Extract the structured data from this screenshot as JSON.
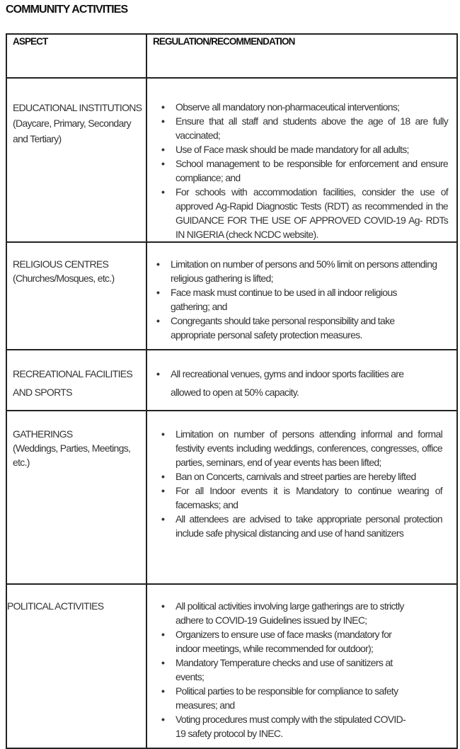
{
  "title": "COMMUNITY ACTIVITIES",
  "table": {
    "headers": [
      "ASPECT",
      "REGULATION/RECOMMENDATION"
    ],
    "rows": [
      {
        "aspect": "EDUCATIONAL INSTITUTIONS",
        "aspect_sub": "(Daycare, Primary, Secondary and Tertiary)",
        "items": [
          "Observe all mandatory non-pharmaceutical interventions;",
          "Ensure that all staff and students above the age of 18 are fully vaccinated;",
          "Use of Face mask should be made mandatory for all adults;",
          "School management to be responsible for enforcement and ensure compliance; and",
          "For schools with accommodation facilities, consider the use of approved Ag-Rapid Diagnostic Tests (RDT) as recommended in the GUIDANCE FOR THE USE OF APPROVED COVID-19 Ag- RDTs IN NIGERIA (check NCDC website)."
        ]
      },
      {
        "aspect": "RELIGIOUS CENTRES",
        "aspect_sub": "(Churches/Mosques, etc.)",
        "items": [
          "Limitation on number of persons and 50% limit on persons attending religious gathering is lifted;",
          "Face mask must continue to be used in all indoor religious gathering; and",
          "Congregants should take personal responsibility and take appropriate personal safety protection measures."
        ]
      },
      {
        "aspect": "RECREATIONAL FACILITIES AND SPORTS",
        "aspect_sub": "",
        "items": [
          "All recreational venues, gyms and indoor sports facilities are allowed to open at 50% capacity."
        ]
      },
      {
        "aspect": "GATHERINGS",
        "aspect_sub": "(Weddings, Parties, Meetings, etc.)",
        "items": [
          "Limitation on number of persons attending informal and formal festivity events including weddings, conferences, congresses, office parties, seminars, end of year events has been lifted;",
          "Ban on Concerts, carnivals and street parties are hereby lifted",
          "For all Indoor events it is Mandatory to continue wearing of facemasks; and",
          "All attendees are advised to take appropriate personal protection include safe physical distancing and use of hand sanitizers"
        ]
      },
      {
        "aspect": "POLITICAL ACTIVITIES",
        "aspect_sub": "",
        "items": [
          "All political activities involving large gatherings are to strictly adhere to COVID-19 Guidelines issued by INEC;",
          "Organizers to ensure use of face masks (mandatory for indoor meetings, while recommended for outdoor);",
          "Mandatory Temperature checks and use of sanitizers at events;",
          "Political parties to be responsible for compliance to safety measures; and",
          "Voting procedures must comply with the stipulated COVID-19 safety protocol by INEC."
        ]
      }
    ]
  }
}
